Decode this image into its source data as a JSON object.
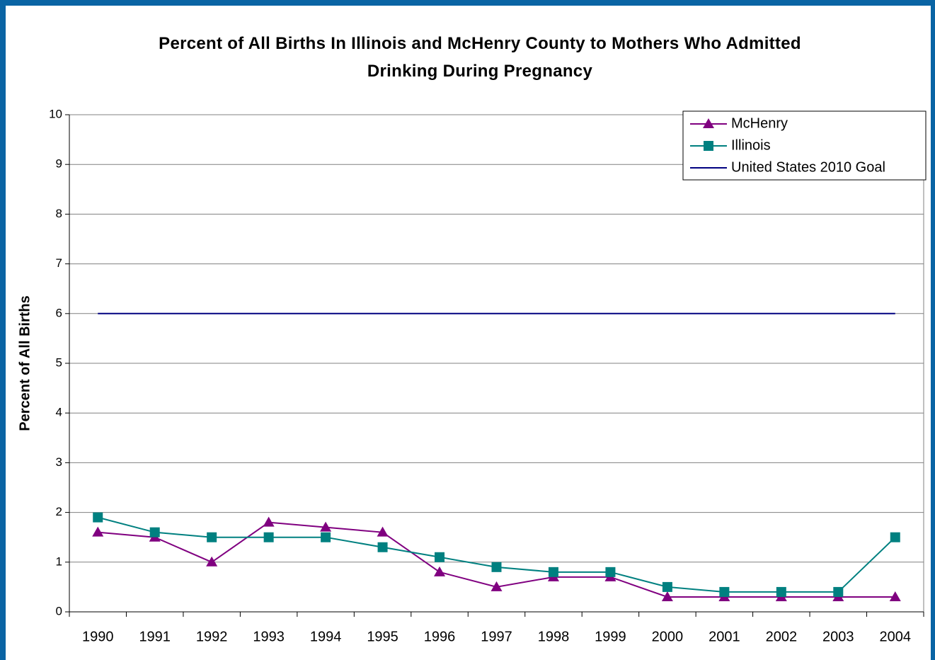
{
  "chart_data": {
    "type": "line",
    "title": "Percent of All Births In Illinois and McHenry County to Mothers Who Admitted Drinking During Pregnancy",
    "y_label": "Percent of All Births",
    "categories": [
      "1990",
      "1991",
      "1992",
      "1993",
      "1994",
      "1995",
      "1996",
      "1997",
      "1998",
      "1999",
      "2000",
      "2001",
      "2002",
      "2003",
      "2004"
    ],
    "series": [
      {
        "name": "McHenry",
        "color": "#800080",
        "marker": "triangle",
        "values": [
          1.6,
          1.5,
          1.0,
          1.8,
          1.7,
          1.6,
          0.8,
          0.5,
          0.7,
          0.7,
          0.3,
          0.3,
          0.3,
          0.3,
          0.3
        ]
      },
      {
        "name": "Illinois",
        "color": "#008080",
        "marker": "square",
        "values": [
          1.9,
          1.6,
          1.5,
          1.5,
          1.5,
          1.3,
          1.1,
          0.9,
          0.8,
          0.8,
          0.5,
          0.4,
          0.4,
          0.4,
          1.5
        ]
      },
      {
        "name": "United States 2010 Goal",
        "color": "#000080",
        "marker": "none",
        "values": [
          6,
          6,
          6,
          6,
          6,
          6,
          6,
          6,
          6,
          6,
          6,
          6,
          6,
          6,
          6
        ]
      }
    ],
    "ylim": [
      0,
      10
    ],
    "yticks": [
      0,
      1,
      2,
      3,
      4,
      5,
      6,
      7,
      8,
      9,
      10
    ],
    "grid": true,
    "legend": "top-right"
  }
}
